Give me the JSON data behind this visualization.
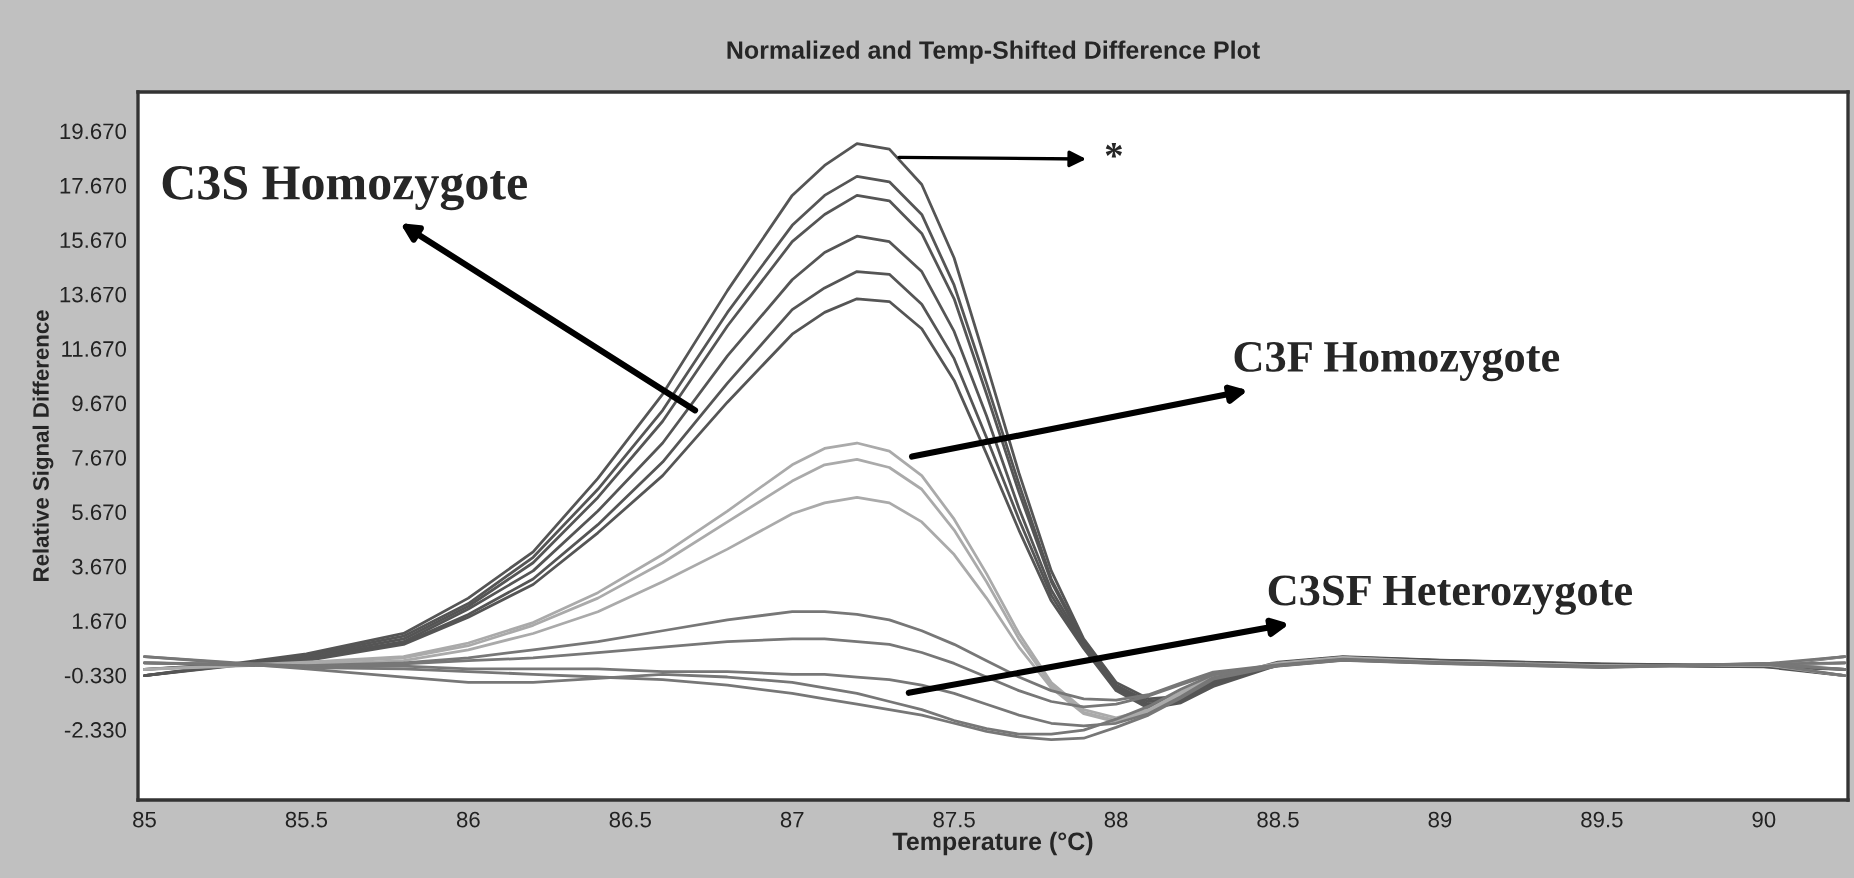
{
  "chart_data": {
    "type": "line",
    "title": "Normalized and Temp-Shifted Difference Plot",
    "xlabel": "Temperature (°C)",
    "ylabel": "Relative Signal Difference",
    "x": [
      85,
      85.5,
      85.8,
      86,
      86.2,
      86.4,
      86.6,
      86.8,
      87,
      87.1,
      87.2,
      87.3,
      87.4,
      87.5,
      87.6,
      87.7,
      87.8,
      87.9,
      88,
      88.1,
      88.2,
      88.3,
      88.5,
      88.7,
      89,
      89.5,
      90,
      90.25
    ],
    "series": [
      {
        "color": "#555555",
        "values": [
          -0.35,
          0.45,
          1.2,
          2.5,
          4.2,
          6.9,
          10.0,
          13.8,
          17.3,
          18.4,
          19.2,
          19.0,
          17.7,
          15.0,
          11.1,
          7.1,
          3.5,
          1.0,
          -0.6,
          -1.2,
          -1.1,
          -0.5,
          0.15,
          0.35,
          0.22,
          0.08,
          0.02,
          -0.35
        ]
      },
      {
        "color": "#555555",
        "values": [
          -0.35,
          0.4,
          1.1,
          2.3,
          4.0,
          6.5,
          9.4,
          13.0,
          16.2,
          17.3,
          18.0,
          17.8,
          16.6,
          14.0,
          10.4,
          6.7,
          3.2,
          0.9,
          -0.7,
          -1.3,
          -1.15,
          -0.55,
          0.12,
          0.33,
          0.21,
          0.07,
          0.01,
          -0.12
        ]
      },
      {
        "color": "#555555",
        "values": [
          -0.35,
          0.35,
          1.0,
          2.2,
          3.8,
          6.2,
          9.0,
          12.5,
          15.6,
          16.6,
          17.3,
          17.1,
          15.9,
          13.5,
          10.0,
          6.4,
          3.1,
          0.85,
          -0.75,
          -1.4,
          -1.2,
          -0.6,
          0.1,
          0.31,
          0.2,
          0.06,
          0,
          0.12
        ]
      },
      {
        "color": "#555555",
        "values": [
          -0.35,
          0.3,
          0.9,
          2.1,
          3.5,
          5.7,
          8.2,
          11.4,
          14.2,
          15.2,
          15.8,
          15.6,
          14.5,
          12.3,
          9.2,
          5.8,
          2.8,
          0.8,
          -0.8,
          -1.45,
          -1.25,
          -0.65,
          0.08,
          0.29,
          0.19,
          0.05,
          -0.01,
          0.35
        ]
      },
      {
        "color": "#555555",
        "values": [
          -0.12,
          0.25,
          0.85,
          1.9,
          3.2,
          5.2,
          7.5,
          10.4,
          13.1,
          13.9,
          14.5,
          14.4,
          13.3,
          11.3,
          8.4,
          5.4,
          2.6,
          0.7,
          -0.85,
          -1.5,
          -1.3,
          -0.7,
          0.06,
          0.27,
          0.18,
          0.04,
          -0.02,
          -0.35
        ]
      },
      {
        "color": "#555555",
        "values": [
          -0.12,
          0.2,
          0.8,
          1.8,
          3.0,
          4.9,
          7.0,
          9.7,
          12.2,
          13.0,
          13.5,
          13.4,
          12.4,
          10.5,
          7.8,
          5.0,
          2.4,
          0.65,
          -0.9,
          -1.55,
          -1.35,
          -0.75,
          0.04,
          0.25,
          0.17,
          0.03,
          -0.03,
          -0.12
        ]
      },
      {
        "color": "#aaaaaa",
        "values": [
          -0.12,
          0.15,
          0.35,
          0.85,
          1.6,
          2.7,
          4.1,
          5.7,
          7.4,
          8.0,
          8.2,
          7.9,
          7.0,
          5.4,
          3.4,
          1.2,
          -0.6,
          -1.6,
          -1.9,
          -1.6,
          -0.95,
          -0.35,
          0.11,
          0.32,
          0.16,
          0.02,
          0.03,
          0.12
        ]
      },
      {
        "color": "#aaaaaa",
        "values": [
          -0.12,
          0.1,
          0.3,
          0.75,
          1.5,
          2.5,
          3.8,
          5.3,
          6.8,
          7.4,
          7.6,
          7.3,
          6.5,
          5.0,
          3.1,
          1.0,
          -0.7,
          -1.7,
          -2.0,
          -1.65,
          -1.0,
          -0.4,
          0.09,
          0.3,
          0.15,
          0.01,
          0.04,
          0.35
        ]
      },
      {
        "color": "#aaaaaa",
        "values": [
          0.12,
          0.05,
          0.2,
          0.6,
          1.2,
          2.0,
          3.1,
          4.3,
          5.6,
          6.0,
          6.2,
          6.0,
          5.3,
          4.1,
          2.5,
          0.7,
          -0.8,
          -1.75,
          -2.05,
          -1.7,
          -1.05,
          -0.45,
          0.07,
          0.28,
          0.14,
          0.0,
          0.05,
          -0.35
        ]
      },
      {
        "color": "#777777",
        "values": [
          0.12,
          0.02,
          0.12,
          0.3,
          0.6,
          0.9,
          1.3,
          1.7,
          2.0,
          2.0,
          1.9,
          1.7,
          1.3,
          0.8,
          0.2,
          -0.4,
          -0.9,
          -1.2,
          -1.25,
          -1.05,
          -0.62,
          -0.22,
          0.05,
          0.26,
          0.13,
          -0.01,
          0.06,
          -0.12
        ]
      },
      {
        "color": "#777777",
        "values": [
          0.12,
          -0.02,
          0.08,
          0.2,
          0.3,
          0.5,
          0.7,
          0.9,
          1.0,
          1.0,
          0.9,
          0.8,
          0.5,
          0.1,
          -0.4,
          -0.9,
          -1.3,
          -1.5,
          -1.4,
          -1.1,
          -0.68,
          -0.28,
          0.03,
          0.24,
          0.12,
          -0.02,
          0.07,
          0.12
        ]
      },
      {
        "color": "#777777",
        "values": [
          0.12,
          0,
          0,
          -0.1,
          -0.1,
          -0.1,
          -0.2,
          -0.2,
          -0.3,
          -0.3,
          -0.4,
          -0.5,
          -0.7,
          -1.0,
          -1.4,
          -1.8,
          -2.1,
          -2.2,
          -2.1,
          -1.75,
          -1.12,
          -0.42,
          0.02,
          0.23,
          0.11,
          -0.03,
          0.08,
          0.35
        ]
      },
      {
        "color": "#777777",
        "values": [
          0.35,
          -0.05,
          -0.1,
          -0.2,
          -0.3,
          -0.4,
          -0.5,
          -0.7,
          -1.0,
          -1.2,
          -1.4,
          -1.6,
          -1.8,
          -2.1,
          -2.4,
          -2.6,
          -2.7,
          -2.65,
          -2.25,
          -1.8,
          -1.17,
          -0.48,
          0.01,
          0.22,
          0.1,
          -0.04,
          0.09,
          -0.35
        ]
      },
      {
        "color": "#777777",
        "values": [
          0.35,
          -0.1,
          -0.4,
          -0.6,
          -0.6,
          -0.45,
          -0.3,
          -0.4,
          -0.6,
          -0.8,
          -1.0,
          -1.3,
          -1.6,
          -2.0,
          -2.3,
          -2.5,
          -2.5,
          -2.35,
          -1.95,
          -1.48,
          -0.85,
          -0.32,
          0,
          0.21,
          0.09,
          -0.05,
          0.1,
          -0.12
        ]
      }
    ],
    "xlim": [
      84.98,
      90.26
    ],
    "ylim": [
      -4.92,
      21.1
    ],
    "xticks": [
      85,
      85.5,
      86,
      86.5,
      87,
      87.5,
      88,
      88.5,
      89,
      89.5,
      90
    ],
    "yticks": [
      {
        "value": -2.33,
        "label": "-2.330"
      },
      {
        "value": -0.33,
        "label": "-0.330"
      },
      {
        "value": 1.67,
        "label": "1.670"
      },
      {
        "value": 3.67,
        "label": "3.670"
      },
      {
        "value": 5.67,
        "label": "5.670"
      },
      {
        "value": 7.67,
        "label": "7.670"
      },
      {
        "value": 9.67,
        "label": "9.670"
      },
      {
        "value": 11.67,
        "label": "11.670"
      },
      {
        "value": 13.67,
        "label": "13.670"
      },
      {
        "value": 15.67,
        "label": "15.670"
      },
      {
        "value": 17.67,
        "label": "17.670"
      },
      {
        "value": 19.67,
        "label": "19.670"
      }
    ],
    "annotations": [
      {
        "text": "C3S Homozygote",
        "x": 86.7,
        "y": 9.4
      },
      {
        "text": "C3F Homozygote",
        "x": 87.37,
        "y": 7.7
      },
      {
        "text": "C3SF Heterozygote",
        "x": 87.36,
        "y": -0.98
      },
      {
        "text": "*",
        "x": 87.33,
        "y": 18.7
      }
    ],
    "grid": false,
    "legend": false,
    "line_style": "solid",
    "marker": "none"
  }
}
